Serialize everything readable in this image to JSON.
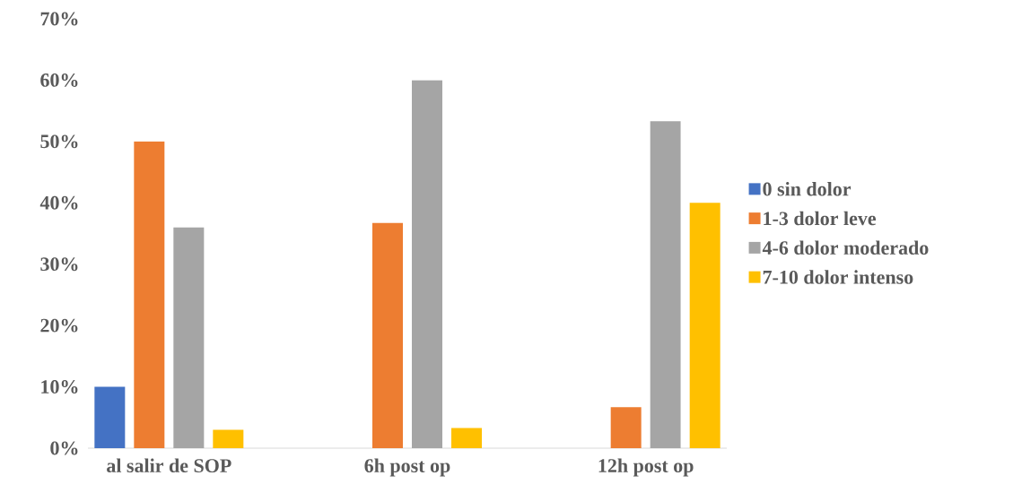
{
  "chart_data": {
    "type": "bar",
    "categories": [
      "al salir de SOP",
      "6h post op",
      "12h post op"
    ],
    "series": [
      {
        "name": "0 sin dolor",
        "color": "#4472c4",
        "values": [
          10,
          0,
          0
        ]
      },
      {
        "name": "1-3 dolor leve",
        "color": "#ed7d31",
        "values": [
          50,
          36.7,
          6.7
        ]
      },
      {
        "name": "4-6 dolor moderado",
        "color": "#a5a5a5",
        "values": [
          36,
          60,
          53.3
        ]
      },
      {
        "name": "7-10 dolor intenso",
        "color": "#ffc000",
        "values": [
          3,
          3.3,
          40
        ]
      }
    ],
    "ylim": [
      0,
      70
    ],
    "yticks": [
      {
        "value": 0,
        "label": "0%"
      },
      {
        "value": 10,
        "label": "10%"
      },
      {
        "value": 20,
        "label": "20%"
      },
      {
        "value": 30,
        "label": "30%"
      },
      {
        "value": 40,
        "label": "40%"
      },
      {
        "value": 50,
        "label": "50%"
      },
      {
        "value": 60,
        "label": "60%"
      },
      {
        "value": 70,
        "label": "70%"
      }
    ],
    "grid": false,
    "legend": "right"
  }
}
